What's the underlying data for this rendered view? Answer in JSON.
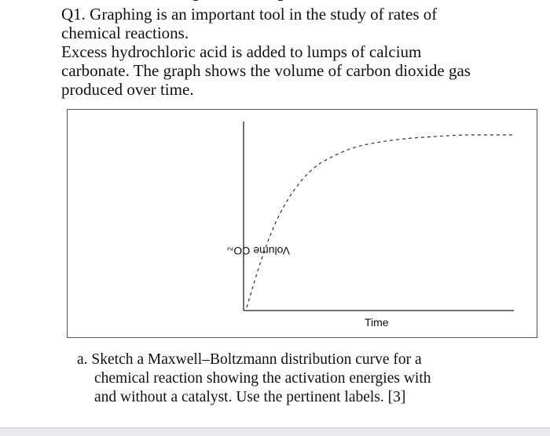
{
  "question": {
    "line1": "Q1. Graphing is an important tool in the study of rates of",
    "line2": "chemical reactions.",
    "line3": "Excess hydrochloric acid is added to lumps of calcium",
    "line4": "carbonate. The graph shows the volume of carbon dioxide gas",
    "line5": "produced over time."
  },
  "figure": {
    "ylabel_main": "Volume CO",
    "ylabel_sub": "2",
    "xlabel": "Time"
  },
  "part_a": {
    "line1": "a. Sketch a Maxwell–Boltzmann distribution curve for a",
    "line2": "chemical reaction showing the activation energies with",
    "line3": "and without a catalyst. Use the pertinent labels. [3]"
  },
  "chart_data": {
    "type": "line",
    "title": "",
    "xlabel": "Time",
    "ylabel": "Volume CO2",
    "series": [
      {
        "style": "dashed",
        "shape": "rises steeply from the origin, curves over, then levels off to a horizontal plateau",
        "x_relative": [
          0,
          0.05,
          0.1,
          0.15,
          0.2,
          0.25,
          0.3,
          0.4,
          0.5,
          0.6,
          0.7,
          0.8,
          0.9,
          1.0
        ],
        "y_relative": [
          0,
          0.26,
          0.47,
          0.62,
          0.73,
          0.81,
          0.86,
          0.93,
          0.96,
          0.98,
          0.99,
          1.0,
          1.0,
          1.0
        ]
      }
    ],
    "grid": false,
    "ticks": false
  }
}
